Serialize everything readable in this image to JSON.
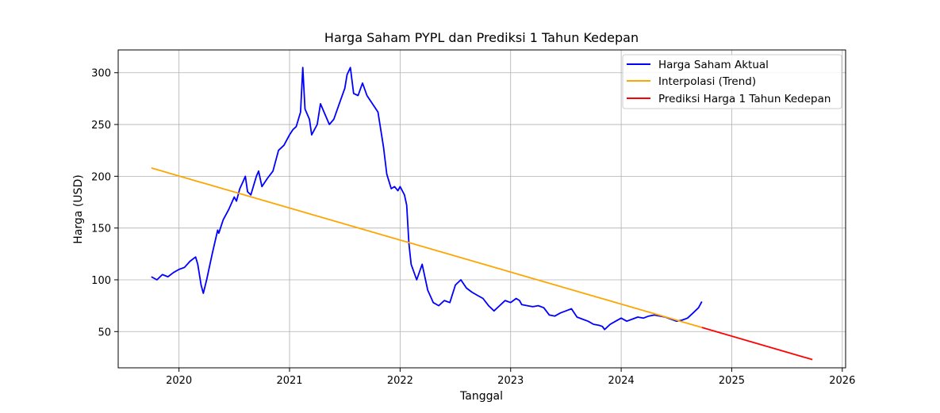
{
  "chart_data": {
    "type": "line",
    "title": "Harga Saham PYPL dan Prediksi 1 Tahun Kedepan",
    "xlabel": "Tanggal",
    "ylabel": "Harga (USD)",
    "xlim": [
      2019.45,
      2026.03
    ],
    "ylim": [
      15,
      322
    ],
    "grid": true,
    "legend_position": "upper-right",
    "x_ticks": [
      2020,
      2021,
      2022,
      2023,
      2024,
      2025,
      2026
    ],
    "x_tick_labels": [
      "2020",
      "2021",
      "2022",
      "2023",
      "2024",
      "2025",
      "2026"
    ],
    "y_ticks": [
      50,
      100,
      150,
      200,
      250,
      300
    ],
    "y_tick_labels": [
      "50",
      "100",
      "150",
      "200",
      "250",
      "300"
    ],
    "series": [
      {
        "name": "Harga Saham Aktual",
        "color": "#0000ff",
        "x": [
          2019.75,
          2019.8,
          2019.85,
          2019.9,
          2019.95,
          2020.0,
          2020.05,
          2020.1,
          2020.15,
          2020.17,
          2020.2,
          2020.22,
          2020.25,
          2020.3,
          2020.35,
          2020.36,
          2020.4,
          2020.45,
          2020.5,
          2020.52,
          2020.55,
          2020.58,
          2020.6,
          2020.62,
          2020.65,
          2020.7,
          2020.72,
          2020.75,
          2020.8,
          2020.85,
          2020.9,
          2020.95,
          2021.0,
          2021.03,
          2021.06,
          2021.1,
          2021.12,
          2021.14,
          2021.18,
          2021.2,
          2021.25,
          2021.28,
          2021.32,
          2021.36,
          2021.4,
          2021.45,
          2021.5,
          2021.52,
          2021.55,
          2021.58,
          2021.62,
          2021.66,
          2021.7,
          2021.75,
          2021.8,
          2021.85,
          2021.88,
          2021.92,
          2021.95,
          2021.98,
          2022.0,
          2022.04,
          2022.06,
          2022.08,
          2022.1,
          2022.15,
          2022.2,
          2022.25,
          2022.3,
          2022.35,
          2022.4,
          2022.45,
          2022.5,
          2022.55,
          2022.6,
          2022.65,
          2022.7,
          2022.75,
          2022.8,
          2022.85,
          2022.9,
          2022.95,
          2023.0,
          2023.05,
          2023.08,
          2023.1,
          2023.15,
          2023.2,
          2023.25,
          2023.3,
          2023.35,
          2023.4,
          2023.45,
          2023.5,
          2023.55,
          2023.6,
          2023.65,
          2023.7,
          2023.75,
          2023.8,
          2023.83,
          2023.85,
          2023.9,
          2023.95,
          2024.0,
          2024.05,
          2024.1,
          2024.15,
          2024.2,
          2024.25,
          2024.3,
          2024.35,
          2024.4,
          2024.45,
          2024.5,
          2024.55,
          2024.6,
          2024.65,
          2024.7,
          2024.73
        ],
        "values": [
          103,
          100,
          105,
          103,
          107,
          110,
          112,
          118,
          122,
          115,
          95,
          87,
          100,
          125,
          148,
          145,
          158,
          168,
          180,
          176,
          188,
          195,
          200,
          185,
          182,
          200,
          205,
          190,
          198,
          205,
          225,
          230,
          240,
          245,
          248,
          262,
          305,
          265,
          255,
          240,
          250,
          270,
          260,
          250,
          255,
          270,
          285,
          298,
          305,
          280,
          278,
          290,
          278,
          270,
          262,
          228,
          202,
          188,
          190,
          186,
          190,
          182,
          172,
          135,
          115,
          100,
          115,
          90,
          78,
          75,
          80,
          78,
          95,
          100,
          92,
          88,
          85,
          82,
          75,
          70,
          75,
          80,
          78,
          82,
          80,
          76,
          75,
          74,
          75,
          73,
          66,
          65,
          68,
          70,
          72,
          64,
          62,
          60,
          57,
          56,
          55,
          52,
          57,
          60,
          63,
          60,
          62,
          64,
          63,
          65,
          66,
          65,
          64,
          62,
          60,
          61,
          63,
          68,
          73,
          79
        ]
      },
      {
        "name": "Interpolasi (Trend)",
        "color": "#ffa500",
        "x": [
          2019.75,
          2024.73
        ],
        "values": [
          208,
          54
        ]
      },
      {
        "name": "Prediksi Harga 1 Tahun Kedepan",
        "color": "#ff0000",
        "x": [
          2024.73,
          2025.73
        ],
        "values": [
          54,
          23
        ]
      }
    ]
  }
}
